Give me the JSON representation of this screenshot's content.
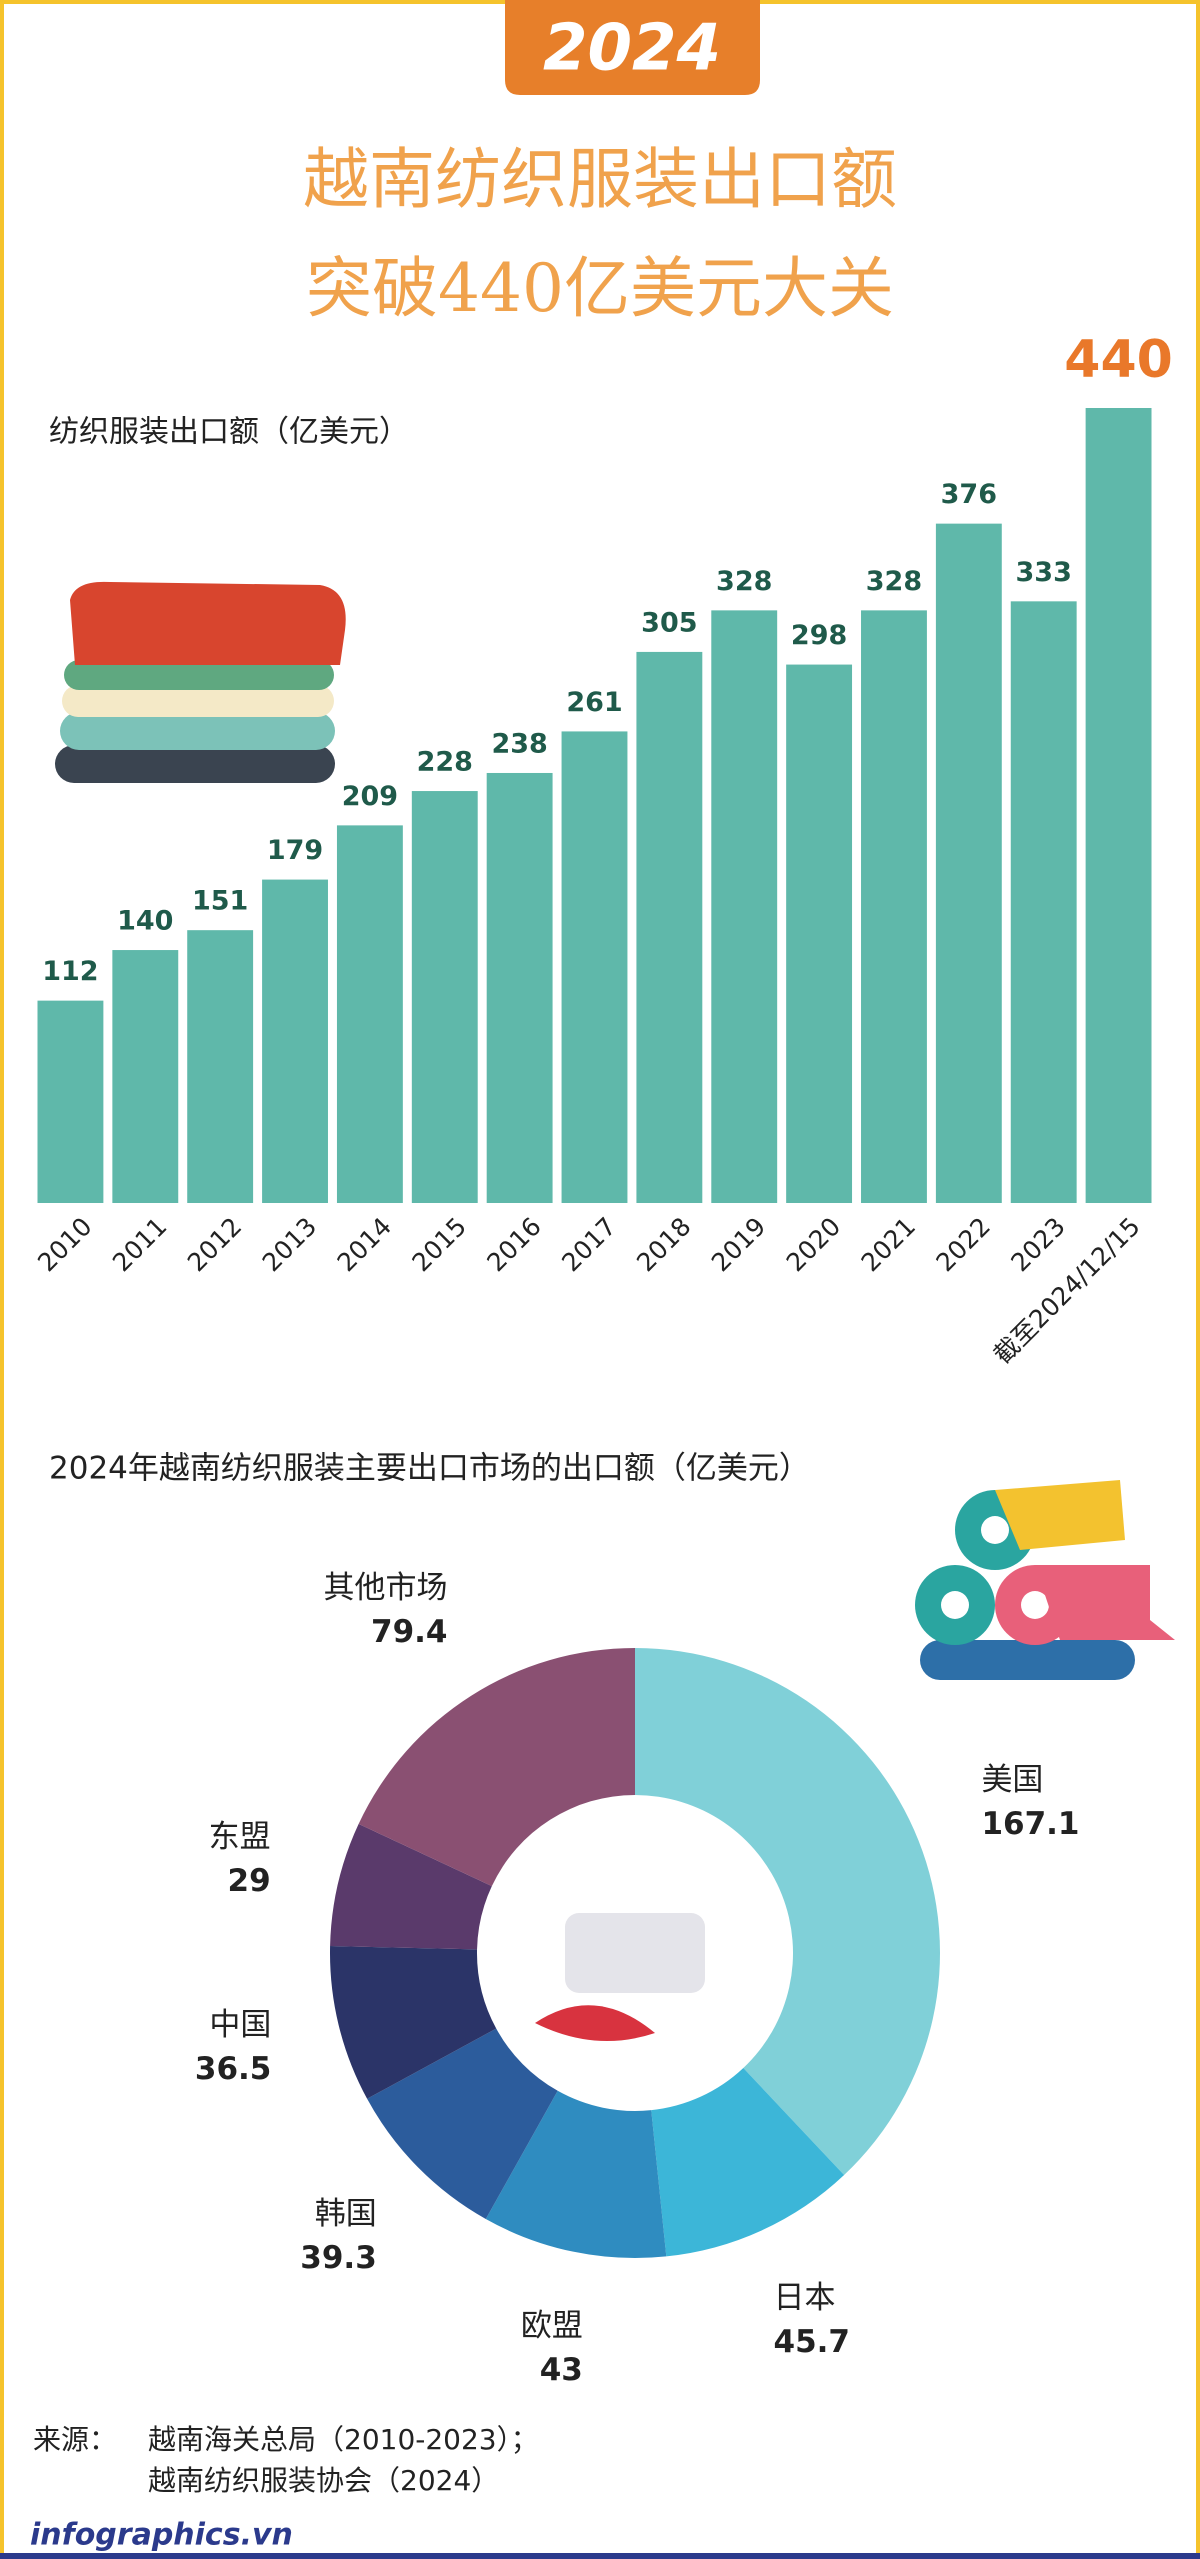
{
  "badge": "2024",
  "title": [
    "越南纺织服装出口额",
    "突破440亿美元大关"
  ],
  "chart_data": [
    {
      "type": "bar",
      "y_label": "纺织服装出口额（亿美元）",
      "categories": [
        "2010",
        "2011",
        "2012",
        "2013",
        "2014",
        "2015",
        "2016",
        "2017",
        "2018",
        "2019",
        "2020",
        "2021",
        "2022",
        "2023",
        "截至2024/12/15"
      ],
      "values": [
        112,
        140,
        151,
        179,
        209,
        228,
        238,
        261,
        305,
        328,
        298,
        328,
        376,
        333,
        440
      ],
      "color": "#5fb8aa",
      "label_color": "#1f5a4a",
      "highlight_color": "#e9782a"
    },
    {
      "type": "pie",
      "donut": true,
      "title": "2024年越南纺织服装主要出口市场的出口额（亿美元）",
      "categories": [
        "美国",
        "日本",
        "欧盟",
        "韩国",
        "中国",
        "东盟",
        "其他市场"
      ],
      "values": [
        167.1,
        45.7,
        43,
        39.3,
        36.5,
        29,
        79.4
      ],
      "colors": [
        "#80d0d8",
        "#3cb6d8",
        "#2f8cc0",
        "#2c5c9c",
        "#2b3468",
        "#5a3a6b",
        "#8a5072"
      ]
    }
  ],
  "source": {
    "label": "来源：",
    "lines": [
      "越南海关总局（2010-2023）；",
      "越南纺织服装协会（2024）"
    ]
  },
  "footer": "infographics.vn"
}
